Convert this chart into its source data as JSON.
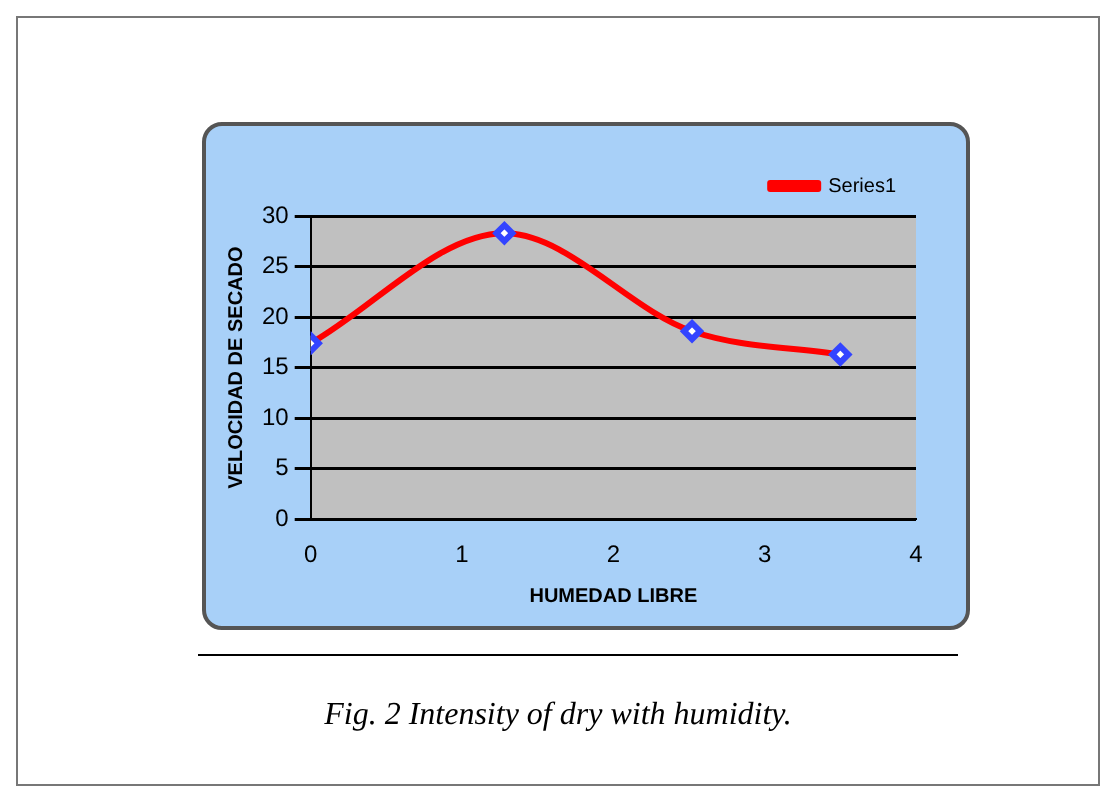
{
  "chart_data": {
    "type": "line",
    "xlabel": "HUMEDAD LIBRE",
    "ylabel": "VELOCIDAD DE SECADO",
    "annotations": [
      "Fig. 2  Intensity of dry with humidity."
    ],
    "series": [
      {
        "name": "Series1",
        "color": "#ff0000",
        "x": [
          0,
          1.28,
          2.52,
          3.5
        ],
        "values": [
          17.4,
          28.3,
          18.6,
          16.3
        ]
      }
    ],
    "xlim": [
      0,
      4
    ],
    "xticks": [
      0,
      1,
      2,
      3,
      4
    ],
    "ylim": [
      0,
      30
    ],
    "yticks": [
      0,
      5,
      10,
      15,
      20,
      25,
      30
    ],
    "grid": "y",
    "legend": "top right",
    "marker": "diamond",
    "line_style": "solid"
  }
}
